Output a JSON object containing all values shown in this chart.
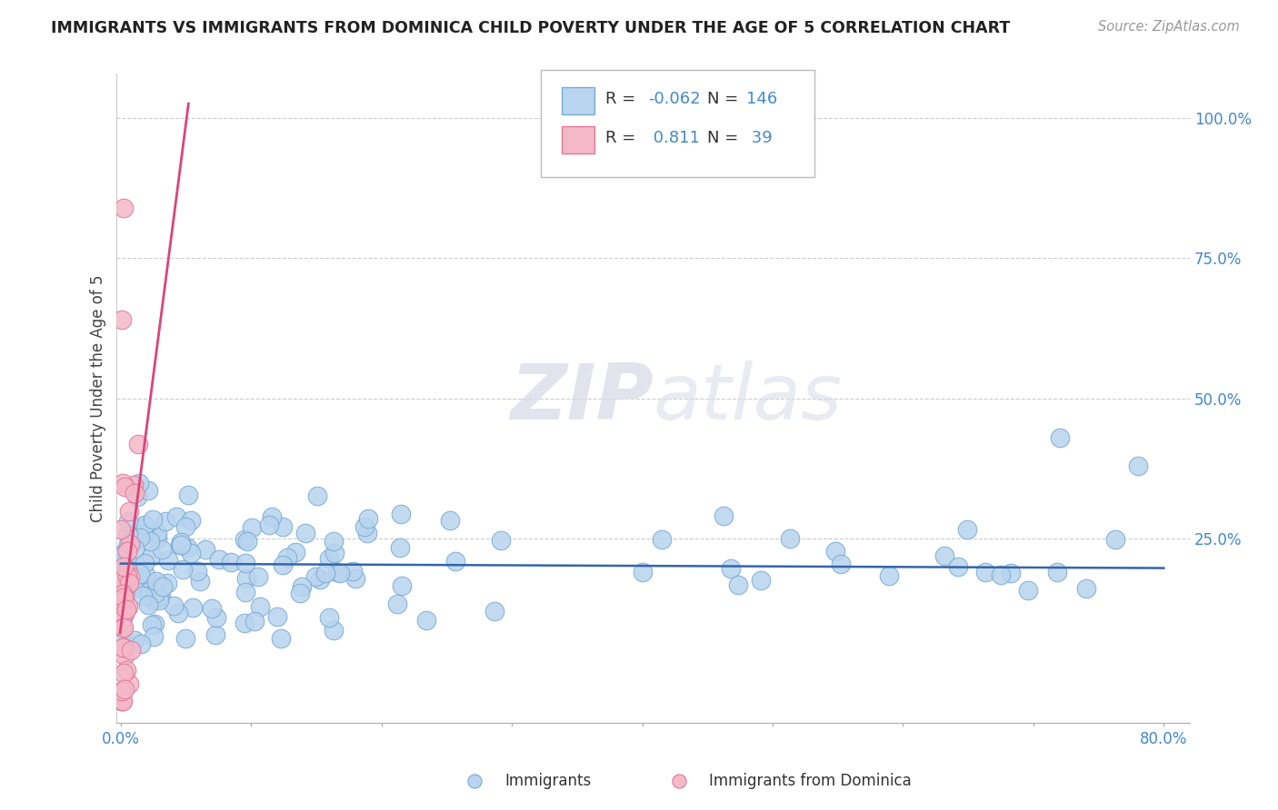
{
  "title": "IMMIGRANTS VS IMMIGRANTS FROM DOMINICA CHILD POVERTY UNDER THE AGE OF 5 CORRELATION CHART",
  "source": "Source: ZipAtlas.com",
  "ylabel": "Child Poverty Under the Age of 5",
  "blue_color": "#b8d4ee",
  "blue_edge_color": "#7aaad4",
  "pink_color": "#f4b8c8",
  "pink_edge_color": "#e07898",
  "blue_line_color": "#3366aa",
  "pink_line_color": "#dd4477",
  "legend_blue_r": "-0.062",
  "legend_blue_n": "146",
  "legend_pink_r": "0.811",
  "legend_pink_n": "39",
  "watermark_zip": "ZIP",
  "watermark_atlas": "atlas",
  "background_color": "#ffffff",
  "blue_R": -0.062,
  "pink_R": 0.811,
  "blue_N": 146,
  "pink_N": 39,
  "blue_line_slope": -0.01,
  "blue_line_intercept": 0.205,
  "pink_line_slope": 18.0,
  "pink_line_intercept": 0.09
}
